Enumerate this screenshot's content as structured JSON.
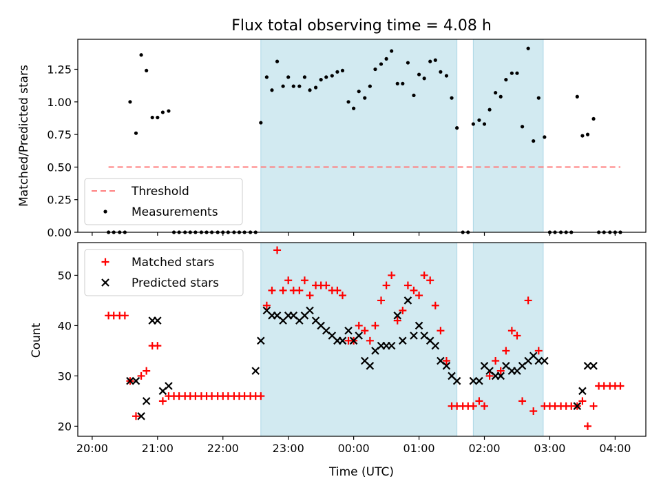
{
  "figure": {
    "title": "Flux total observing time = 4.08 h",
    "xlabel": "Time (UTC)"
  },
  "colors": {
    "shade": "#add8e6",
    "threshold": "#ff7f7f",
    "matched": "#ff0000",
    "predicted": "#000000",
    "measurement": "#000000"
  },
  "chart_data": [
    {
      "type": "scatter",
      "ylabel": "Matched/Predicted stars",
      "xlim": [
        -0.22,
        8.47
      ],
      "ylim": [
        0,
        1.48
      ],
      "yticks": [
        0,
        0.25,
        0.5,
        0.75,
        1.0,
        1.25
      ],
      "ytick_labels": [
        "0.00",
        "0.25",
        "0.50",
        "0.75",
        "1.00",
        "1.25"
      ],
      "shaded_ranges": [
        [
          2.58,
          5.58
        ],
        [
          5.83,
          6.9
        ]
      ],
      "threshold": {
        "name": "Threshold",
        "y": 0.5,
        "x_range": [
          0.25,
          8.08
        ]
      },
      "legend": {
        "loc": "lower-left",
        "entries": [
          "Threshold",
          "Measurements"
        ]
      },
      "series": [
        {
          "name": "Measurements",
          "x": [
            0.25,
            0.33,
            0.42,
            0.5,
            0.58,
            0.67,
            0.75,
            0.83,
            0.92,
            1.0,
            1.08,
            1.17,
            1.25,
            1.33,
            1.42,
            1.5,
            1.58,
            1.67,
            1.75,
            1.83,
            1.92,
            2.0,
            2.08,
            2.17,
            2.25,
            2.33,
            2.42,
            2.5,
            2.58,
            2.67,
            2.75,
            2.83,
            2.92,
            3.0,
            3.08,
            3.17,
            3.25,
            3.33,
            3.42,
            3.5,
            3.58,
            3.67,
            3.75,
            3.83,
            3.92,
            4.0,
            4.08,
            4.17,
            4.25,
            4.33,
            4.42,
            4.5,
            4.58,
            4.67,
            4.75,
            4.83,
            4.92,
            5.0,
            5.08,
            5.17,
            5.25,
            5.33,
            5.42,
            5.5,
            5.58,
            5.67,
            5.75,
            5.83,
            5.92,
            6.0,
            6.08,
            6.17,
            6.25,
            6.33,
            6.42,
            6.5,
            6.58,
            6.67,
            6.75,
            6.83,
            6.92,
            7.0,
            7.08,
            7.17,
            7.25,
            7.33,
            7.42,
            7.5,
            7.58,
            7.67,
            7.75,
            7.83,
            7.92,
            8.0,
            8.08
          ],
          "y": [
            0,
            0,
            0,
            0,
            1.0,
            0.76,
            1.36,
            1.24,
            0.88,
            0.88,
            0.92,
            0.93,
            0,
            0,
            0,
            0,
            0,
            0,
            0,
            0,
            0,
            0,
            0,
            0,
            0,
            0,
            0,
            0,
            0.84,
            1.19,
            1.09,
            1.31,
            1.12,
            1.19,
            1.12,
            1.12,
            1.19,
            1.09,
            1.11,
            1.17,
            1.19,
            1.2,
            1.23,
            1.24,
            1.0,
            0.95,
            1.08,
            1.03,
            1.12,
            1.25,
            1.29,
            1.33,
            1.39,
            1.14,
            1.14,
            1.3,
            1.05,
            1.21,
            1.18,
            1.31,
            1.32,
            1.23,
            1.2,
            1.03,
            0.8,
            0,
            0,
            0.83,
            0.86,
            0.83,
            0.94,
            1.07,
            1.04,
            1.17,
            1.22,
            1.22,
            0.81,
            1.41,
            0.7,
            1.03,
            0.73,
            0,
            0,
            0,
            0,
            0,
            1.04,
            0.74,
            0.75,
            0.87,
            0,
            0,
            0,
            0,
            0
          ]
        }
      ]
    },
    {
      "type": "scatter",
      "ylabel": "Count",
      "xlim": [
        -0.22,
        8.47
      ],
      "ylim": [
        18,
        56.5
      ],
      "yticks": [
        20,
        30,
        40,
        50
      ],
      "ytick_labels": [
        "20",
        "30",
        "40",
        "50"
      ],
      "xticks": [
        0,
        1,
        2,
        3,
        4,
        5,
        6,
        7,
        8
      ],
      "xtick_labels": [
        "20:00",
        "21:00",
        "22:00",
        "23:00",
        "00:00",
        "01:00",
        "02:00",
        "03:00",
        "04:00"
      ],
      "shaded_ranges": [
        [
          2.58,
          5.58
        ],
        [
          5.83,
          6.9
        ]
      ],
      "legend": {
        "loc": "upper-left",
        "entries": [
          "Matched stars",
          "Predicted stars"
        ]
      },
      "series": [
        {
          "name": "Matched stars",
          "marker": "+",
          "x": [
            0.25,
            0.33,
            0.42,
            0.5,
            0.58,
            0.67,
            0.75,
            0.83,
            0.92,
            1.0,
            1.08,
            1.17,
            1.25,
            1.33,
            1.42,
            1.5,
            1.58,
            1.67,
            1.75,
            1.83,
            1.92,
            2.0,
            2.08,
            2.17,
            2.25,
            2.33,
            2.42,
            2.5,
            2.58,
            2.67,
            2.75,
            2.83,
            2.92,
            3.0,
            3.08,
            3.17,
            3.25,
            3.33,
            3.42,
            3.5,
            3.58,
            3.67,
            3.75,
            3.83,
            3.92,
            4.0,
            4.08,
            4.17,
            4.25,
            4.33,
            4.42,
            4.5,
            4.58,
            4.67,
            4.75,
            4.83,
            4.92,
            5.0,
            5.08,
            5.17,
            5.25,
            5.33,
            5.42,
            5.5,
            5.58,
            5.67,
            5.75,
            5.83,
            5.92,
            6.0,
            6.08,
            6.17,
            6.25,
            6.33,
            6.42,
            6.5,
            6.58,
            6.67,
            6.75,
            6.83,
            6.92,
            7.0,
            7.08,
            7.17,
            7.25,
            7.33,
            7.42,
            7.5,
            7.58,
            7.67,
            7.75,
            7.83,
            7.92,
            8.0,
            8.08
          ],
          "y": [
            42,
            42,
            42,
            42,
            29,
            22,
            30,
            31,
            36,
            36,
            25,
            26,
            26,
            26,
            26,
            26,
            26,
            26,
            26,
            26,
            26,
            26,
            26,
            26,
            26,
            26,
            26,
            26,
            26,
            44,
            47,
            55,
            47,
            49,
            47,
            47,
            49,
            46,
            48,
            48,
            48,
            47,
            47,
            46,
            37,
            37,
            40,
            39,
            37,
            40,
            45,
            48,
            50,
            41,
            43,
            48,
            47,
            46,
            50,
            49,
            44,
            39,
            33,
            24,
            24,
            24,
            24,
            24,
            25,
            24,
            30,
            33,
            31,
            35,
            39,
            38,
            25,
            45,
            23,
            35,
            24,
            24,
            24,
            24,
            24,
            24,
            24,
            25,
            20,
            24,
            28,
            28,
            28,
            28,
            28
          ]
        },
        {
          "name": "Predicted stars",
          "marker": "x",
          "x": [
            0.58,
            0.67,
            0.75,
            0.83,
            0.92,
            1.0,
            1.08,
            1.17,
            2.5,
            2.58,
            2.67,
            2.75,
            2.83,
            2.92,
            3.0,
            3.08,
            3.17,
            3.25,
            3.33,
            3.42,
            3.5,
            3.58,
            3.67,
            3.75,
            3.83,
            3.92,
            4.0,
            4.08,
            4.17,
            4.25,
            4.33,
            4.42,
            4.5,
            4.58,
            4.67,
            4.75,
            4.83,
            4.92,
            5.0,
            5.08,
            5.17,
            5.25,
            5.33,
            5.42,
            5.5,
            5.58,
            5.83,
            5.92,
            6.0,
            6.08,
            6.17,
            6.25,
            6.33,
            6.42,
            6.5,
            6.58,
            6.67,
            6.75,
            6.83,
            6.92,
            7.42,
            7.5,
            7.58,
            7.67
          ],
          "y": [
            29,
            29,
            22,
            25,
            41,
            41,
            27,
            28,
            31,
            37,
            43,
            42,
            42,
            41,
            42,
            42,
            41,
            42,
            43,
            41,
            40,
            39,
            38,
            37,
            37,
            39,
            37,
            38,
            33,
            32,
            35,
            36,
            36,
            36,
            42,
            37,
            45,
            38,
            40,
            38,
            37,
            36,
            33,
            32,
            30,
            29,
            29,
            29,
            32,
            31,
            30,
            30,
            32,
            31,
            31,
            32,
            33,
            34,
            33,
            33,
            24,
            27,
            32,
            32
          ]
        }
      ]
    }
  ]
}
